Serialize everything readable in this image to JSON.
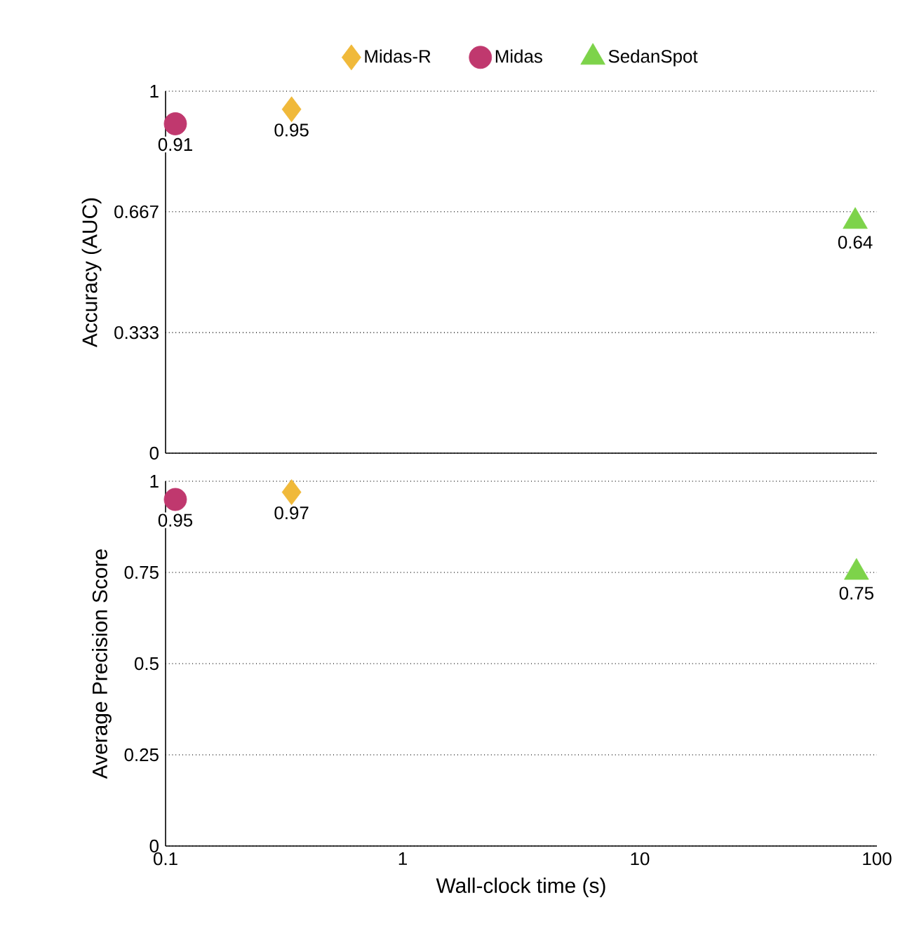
{
  "chart_data": [
    {
      "type": "scatter",
      "ylabel": "Accuracy (AUC)",
      "log": "x",
      "xlim": [
        0.1,
        100
      ],
      "ylim": [
        0,
        1
      ],
      "yticks": [
        0,
        0.333,
        0.667,
        1
      ],
      "grid": "y",
      "legend": "top",
      "tick_labels": "y",
      "data_labels": true,
      "series": [
        {
          "name": "Midas-R",
          "color": "#f0b93a",
          "marker": "diamond",
          "x": [
            0.34
          ],
          "values": [
            0.95
          ]
        },
        {
          "name": "Midas",
          "color": "#c0386e",
          "marker": "circle",
          "x": [
            0.11
          ],
          "values": [
            0.91
          ]
        },
        {
          "name": "SedanSpot",
          "color": "#7dd34a",
          "marker": "triangle",
          "x": [
            81
          ],
          "values": [
            0.64
          ]
        }
      ]
    },
    {
      "type": "scatter",
      "ylabel": "Average Precision Score",
      "xlabel": "Wall-clock time (s)",
      "log": "x",
      "xlim": [
        0.1,
        100
      ],
      "xticks": [
        0.1,
        1,
        10,
        100
      ],
      "ylim": [
        0,
        1
      ],
      "yticks": [
        0,
        0.25,
        0.5,
        0.75,
        1
      ],
      "grid": "y",
      "data_labels": true,
      "series": [
        {
          "color": "#f0b93a",
          "marker": "diamond",
          "x": [
            0.34
          ],
          "values": [
            0.97
          ]
        },
        {
          "color": "#c0386e",
          "marker": "circle",
          "x": [
            0.11
          ],
          "values": [
            0.95
          ]
        },
        {
          "color": "#7dd34a",
          "marker": "triangle",
          "x": [
            82
          ],
          "values": [
            0.75
          ]
        }
      ]
    }
  ]
}
